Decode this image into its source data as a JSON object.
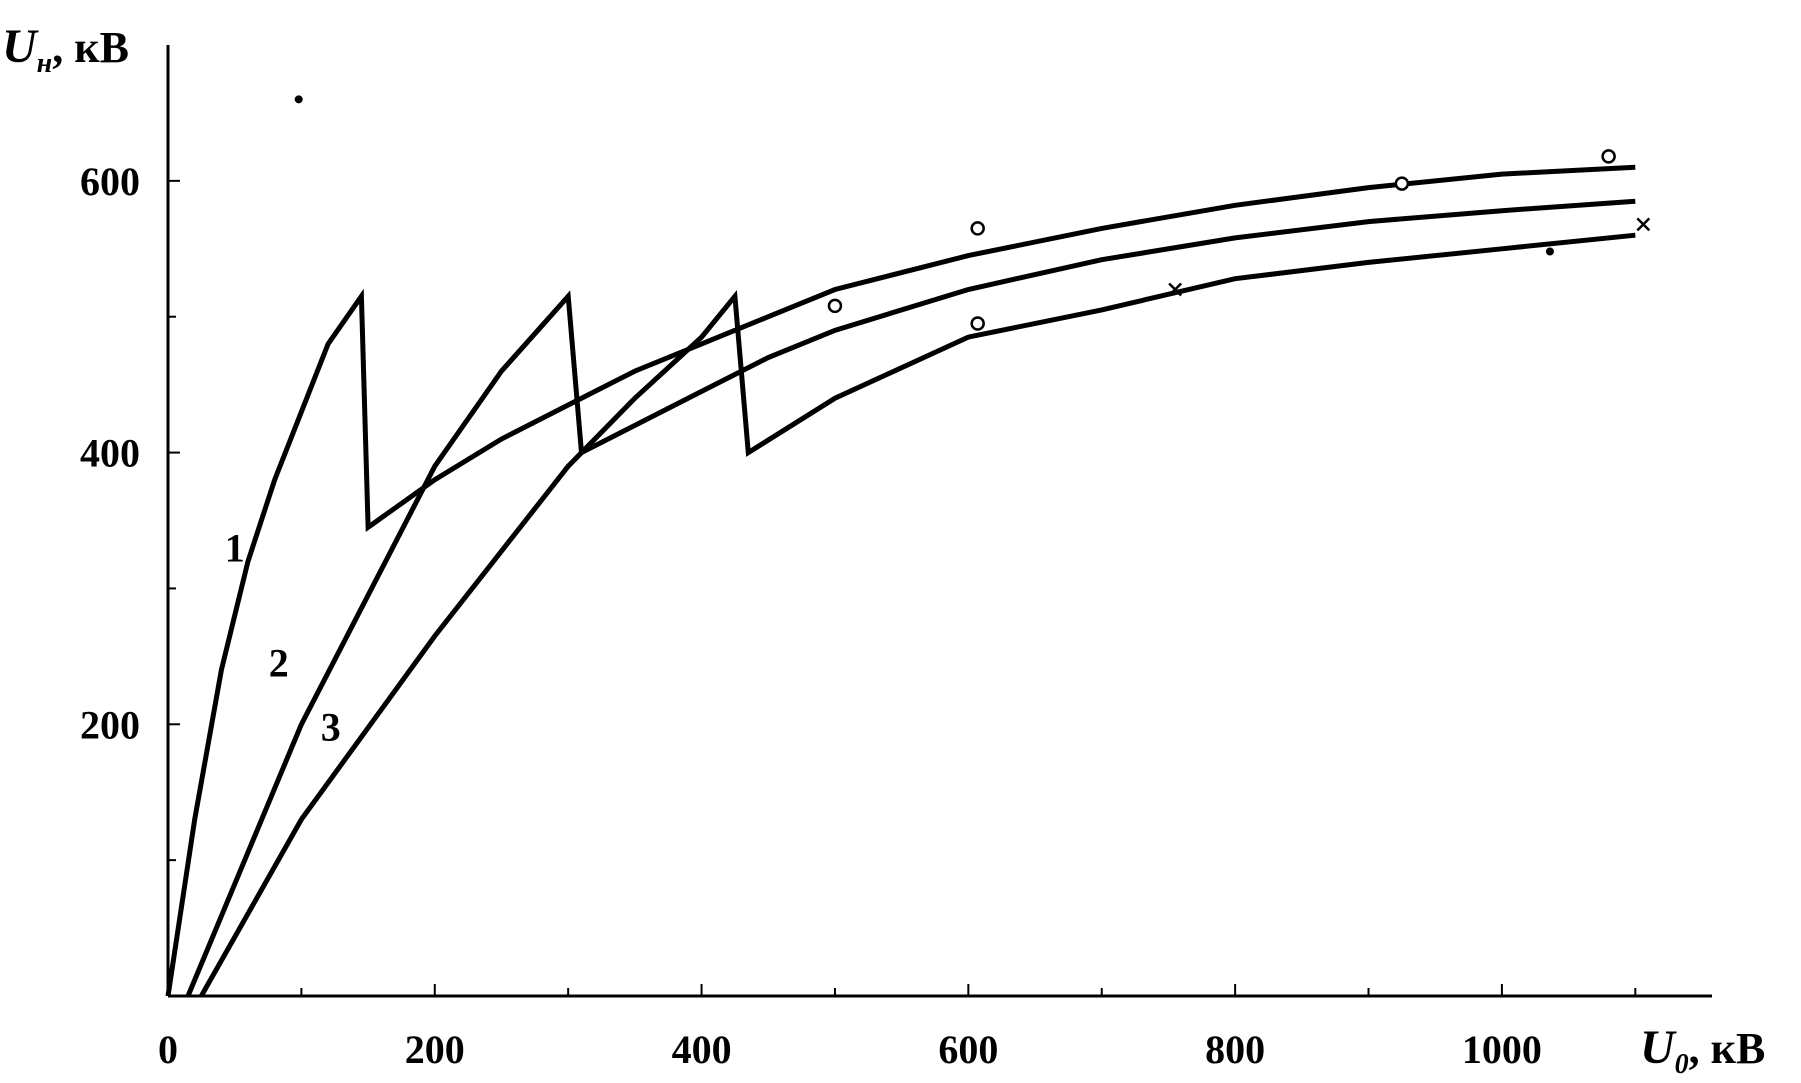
{
  "chart_data": {
    "type": "line",
    "title": "",
    "ylabel": {
      "main": "U",
      "sub": "н",
      "unit": ", кВ"
    },
    "xlabel": {
      "main": "U",
      "sub": "0",
      "unit": ", кВ"
    },
    "xlim": [
      0,
      1150
    ],
    "ylim": [
      0,
      700
    ],
    "x_ticks": [
      {
        "v": 0,
        "label": "0"
      },
      {
        "v": 200,
        "label": "200"
      },
      {
        "v": 400,
        "label": "400"
      },
      {
        "v": 600,
        "label": "600"
      },
      {
        "v": 800,
        "label": "800"
      },
      {
        "v": 1000,
        "label": "1000"
      }
    ],
    "x_minor_ticks": [
      100,
      300,
      500,
      700,
      900,
      1100
    ],
    "y_ticks": [
      {
        "v": 200,
        "label": "200"
      },
      {
        "v": 400,
        "label": "400"
      },
      {
        "v": 600,
        "label": "600"
      }
    ],
    "y_minor_ticks": [
      100,
      300,
      500
    ],
    "grid": false,
    "legend": "none",
    "series": [
      {
        "name": "1",
        "label_at": {
          "x": 50,
          "y": 320
        },
        "points": [
          [
            0,
            0
          ],
          [
            20,
            130
          ],
          [
            40,
            240
          ],
          [
            60,
            320
          ],
          [
            80,
            380
          ],
          [
            100,
            430
          ],
          [
            120,
            480
          ],
          [
            145,
            515
          ],
          [
            150,
            345
          ],
          [
            200,
            380
          ],
          [
            250,
            410
          ],
          [
            300,
            435
          ],
          [
            350,
            460
          ],
          [
            400,
            480
          ],
          [
            450,
            500
          ],
          [
            500,
            520
          ],
          [
            600,
            545
          ],
          [
            700,
            565
          ],
          [
            800,
            582
          ],
          [
            900,
            595
          ],
          [
            1000,
            605
          ],
          [
            1100,
            610
          ]
        ]
      },
      {
        "name": "2",
        "label_at": {
          "x": 83,
          "y": 235
        },
        "points": [
          [
            15,
            0
          ],
          [
            100,
            200
          ],
          [
            200,
            390
          ],
          [
            250,
            460
          ],
          [
            300,
            515
          ],
          [
            310,
            400
          ],
          [
            400,
            445
          ],
          [
            450,
            470
          ],
          [
            500,
            490
          ],
          [
            600,
            520
          ],
          [
            700,
            542
          ],
          [
            800,
            558
          ],
          [
            900,
            570
          ],
          [
            1000,
            578
          ],
          [
            1100,
            585
          ]
        ]
      },
      {
        "name": "3",
        "label_at": {
          "x": 122,
          "y": 188
        },
        "points": [
          [
            25,
            0
          ],
          [
            100,
            130
          ],
          [
            200,
            265
          ],
          [
            300,
            390
          ],
          [
            350,
            440
          ],
          [
            400,
            485
          ],
          [
            425,
            515
          ],
          [
            435,
            400
          ],
          [
            500,
            440
          ],
          [
            600,
            485
          ],
          [
            700,
            505
          ],
          [
            800,
            528
          ],
          [
            900,
            540
          ],
          [
            1000,
            550
          ],
          [
            1100,
            560
          ]
        ]
      }
    ],
    "markers": [
      {
        "type": "circle",
        "x": 607,
        "y": 565
      },
      {
        "type": "circle",
        "x": 1080,
        "y": 618
      },
      {
        "type": "circle",
        "x": 925,
        "y": 598
      },
      {
        "type": "circle",
        "x": 500,
        "y": 508
      },
      {
        "type": "circle",
        "x": 607,
        "y": 495
      },
      {
        "type": "x",
        "x": 1106,
        "y": 568
      },
      {
        "type": "x",
        "x": 755,
        "y": 520
      },
      {
        "type": "dot",
        "x": 1036,
        "y": 548
      },
      {
        "type": "dot",
        "x": 98,
        "y": 660
      }
    ]
  }
}
